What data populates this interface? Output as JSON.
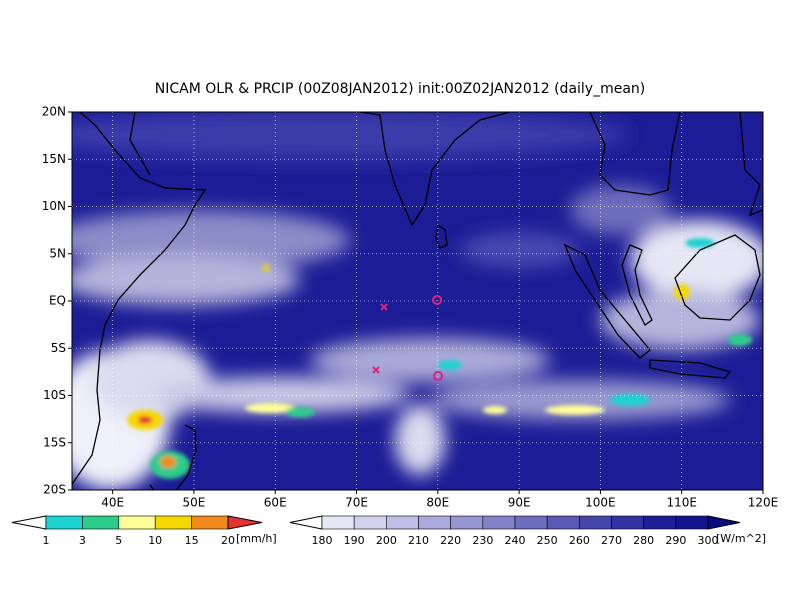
{
  "title": "NICAM OLR & PRCIP (00Z08JAN2012) init:00Z02JAN2012 (daily_mean)",
  "map": {
    "lat_labels": [
      "20N",
      "15N",
      "10N",
      "5N",
      "EQ",
      "5S",
      "10S",
      "15S",
      "20S"
    ],
    "lon_labels": [
      "40E",
      "50E",
      "60E",
      "70E",
      "80E",
      "90E",
      "100E",
      "110E",
      "120E"
    ]
  },
  "precip_legend": {
    "labels": [
      "1",
      "3",
      "5",
      "10",
      "15",
      "20"
    ],
    "unit": "[mm/h]",
    "colors": [
      "#ffffff",
      "#1ed2d2",
      "#2ecc8c",
      "#ffff9a",
      "#f5d800",
      "#f08a1e",
      "#e63232"
    ]
  },
  "olr_legend": {
    "labels": [
      "180",
      "190",
      "200",
      "210",
      "220",
      "230",
      "240",
      "250",
      "260",
      "270",
      "280",
      "290",
      "300"
    ],
    "unit": "[W/m^2]",
    "colors": [
      "#ffffff",
      "#e6e6f5",
      "#d2d2ee",
      "#bebee6",
      "#aaaadc",
      "#9696d2",
      "#8282c8",
      "#6e6ebe",
      "#5a5ab4",
      "#4646aa",
      "#3232a0",
      "#1e1e96",
      "#14148c",
      "#0a0a82"
    ]
  }
}
